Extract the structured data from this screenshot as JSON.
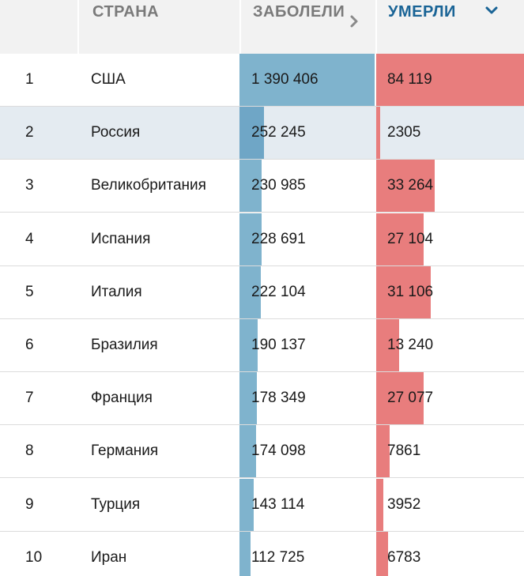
{
  "header": {
    "country": "СТРАНА",
    "cases": "ЗАБОЛЕЛИ",
    "deaths": "УМЕРЛИ",
    "cases_sort_icon": "chevron-right-icon",
    "deaths_sort_icon": "chevron-down-icon",
    "deaths_active_color": "#1a6496"
  },
  "colors": {
    "cases_bar": "#7fb3cd",
    "deaths_bar": "#e87d7d",
    "highlight_row": "#e4ebf1"
  },
  "rows": [
    {
      "rank": "1",
      "country": "США",
      "cases": "1 390 406",
      "deaths": "84 119",
      "cases_num": 1390406,
      "deaths_num": 84119
    },
    {
      "rank": "2",
      "country": "Россия",
      "cases": "252 245",
      "deaths": "2305",
      "cases_num": 252245,
      "deaths_num": 2305
    },
    {
      "rank": "3",
      "country": "Великобритания",
      "cases": "230 985",
      "deaths": "33 264",
      "cases_num": 230985,
      "deaths_num": 33264
    },
    {
      "rank": "4",
      "country": "Испания",
      "cases": "228 691",
      "deaths": "27 104",
      "cases_num": 228691,
      "deaths_num": 27104
    },
    {
      "rank": "5",
      "country": "Италия",
      "cases": "222 104",
      "deaths": "31 106",
      "cases_num": 222104,
      "deaths_num": 31106
    },
    {
      "rank": "6",
      "country": "Бразилия",
      "cases": "190 137",
      "deaths": "13 240",
      "cases_num": 190137,
      "deaths_num": 13240
    },
    {
      "rank": "7",
      "country": "Франция",
      "cases": "178 349",
      "deaths": "27 077",
      "cases_num": 178349,
      "deaths_num": 27077
    },
    {
      "rank": "8",
      "country": "Германия",
      "cases": "174 098",
      "deaths": "7861",
      "cases_num": 174098,
      "deaths_num": 7861
    },
    {
      "rank": "9",
      "country": "Турция",
      "cases": "143 114",
      "deaths": "3952",
      "cases_num": 143114,
      "deaths_num": 3952
    },
    {
      "rank": "10",
      "country": "Иран",
      "cases": "112 725",
      "deaths": "6783",
      "cases_num": 112725,
      "deaths_num": 6783
    }
  ],
  "highlighted_rank": "2"
}
